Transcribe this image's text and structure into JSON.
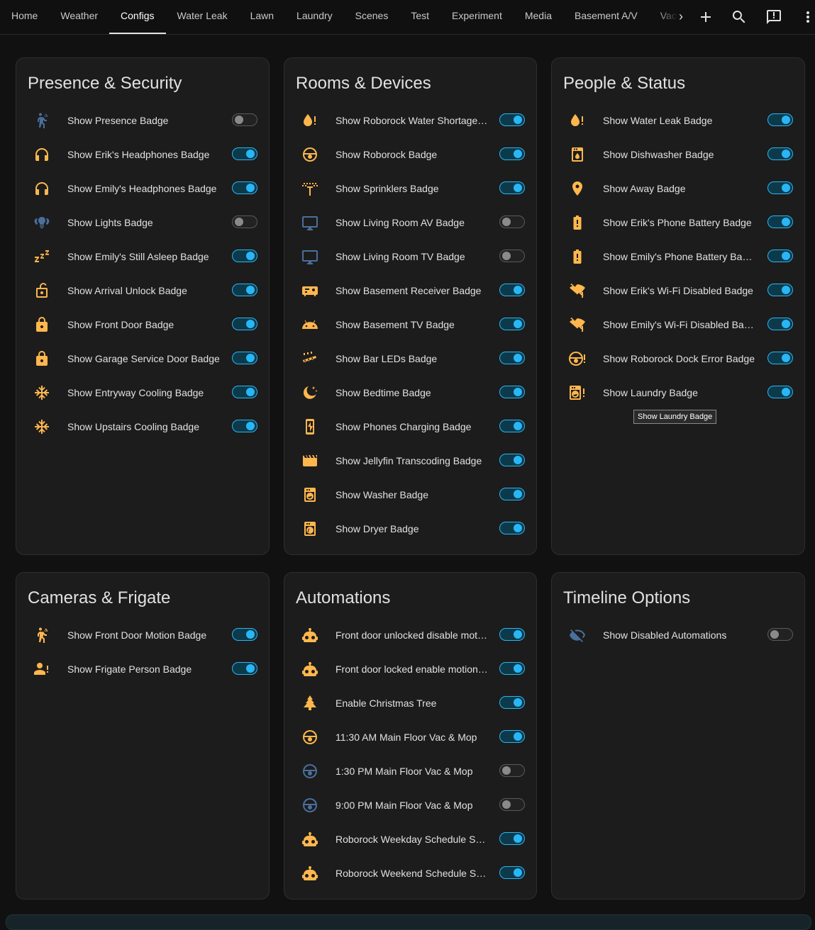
{
  "colors": {
    "accent": "#29b6f6",
    "icon_on": "#ffb74d",
    "icon_off": "#4a6f9c",
    "card": "#1c1c1c",
    "background": "#111111"
  },
  "nav": {
    "tabs": [
      "Home",
      "Weather",
      "Configs",
      "Water Leak",
      "Lawn",
      "Laundry",
      "Scenes",
      "Test",
      "Experiment",
      "Media",
      "Basement A/V",
      "Vacuum"
    ],
    "active_tab": "Configs",
    "actions": [
      "plus-icon",
      "search-icon",
      "chat-icon",
      "more-vert-icon"
    ]
  },
  "cards": [
    {
      "title": "Presence & Security",
      "rows": [
        {
          "icon": "motion-person",
          "label": "Show Presence Badge",
          "on": false
        },
        {
          "icon": "headphones",
          "label": "Show Erik's Headphones Badge",
          "on": true
        },
        {
          "icon": "headphones",
          "label": "Show Emily's Headphones Badge",
          "on": true
        },
        {
          "icon": "lightbulb-group",
          "label": "Show Lights Badge",
          "on": false
        },
        {
          "icon": "sleep",
          "label": "Show Emily's Still Asleep Badge",
          "on": true
        },
        {
          "icon": "lock-open",
          "label": "Show Arrival Unlock Badge",
          "on": true
        },
        {
          "icon": "lock",
          "label": "Show Front Door Badge",
          "on": true
        },
        {
          "icon": "lock",
          "label": "Show Garage Service Door Badge",
          "on": true
        },
        {
          "icon": "snowflake",
          "label": "Show Entryway Cooling Badge",
          "on": true
        },
        {
          "icon": "snowflake",
          "label": "Show Upstairs Cooling Badge",
          "on": true
        }
      ]
    },
    {
      "title": "Rooms & Devices",
      "rows": [
        {
          "icon": "water-alert",
          "label": "Show Roborock Water Shortage Badge",
          "on": true
        },
        {
          "icon": "robot-vacuum",
          "label": "Show Roborock Badge",
          "on": true
        },
        {
          "icon": "sprinkler",
          "label": "Show Sprinklers Badge",
          "on": true
        },
        {
          "icon": "monitor",
          "label": "Show Living Room AV Badge",
          "on": false
        },
        {
          "icon": "monitor",
          "label": "Show Living Room TV Badge",
          "on": false
        },
        {
          "icon": "audio-receiver",
          "label": "Show Basement Receiver Badge",
          "on": true
        },
        {
          "icon": "android",
          "label": "Show Basement TV Badge",
          "on": true
        },
        {
          "icon": "led-strip",
          "label": "Show Bar LEDs Badge",
          "on": true
        },
        {
          "icon": "moon-stars",
          "label": "Show Bedtime Badge",
          "on": true
        },
        {
          "icon": "phone-charging",
          "label": "Show Phones Charging Badge",
          "on": true
        },
        {
          "icon": "clapperboard",
          "label": "Show Jellyfin Transcoding Badge",
          "on": true
        },
        {
          "icon": "washer",
          "label": "Show Washer Badge",
          "on": true
        },
        {
          "icon": "dryer",
          "label": "Show Dryer Badge",
          "on": true
        }
      ]
    },
    {
      "title": "People & Status",
      "rows": [
        {
          "icon": "water-alert",
          "label": "Show Water Leak Badge",
          "on": true
        },
        {
          "icon": "dishwasher",
          "label": "Show Dishwasher Badge",
          "on": true
        },
        {
          "icon": "map-marker",
          "label": "Show Away Badge",
          "on": true
        },
        {
          "icon": "battery-alert",
          "label": "Show Erik's Phone Battery Badge",
          "on": true
        },
        {
          "icon": "battery-alert",
          "label": "Show Emily's Phone Battery Badge",
          "on": true
        },
        {
          "icon": "wifi-off",
          "label": "Show Erik's Wi-Fi Disabled Badge",
          "on": true
        },
        {
          "icon": "wifi-off",
          "label": "Show Emily's Wi-Fi Disabled Badge",
          "on": true
        },
        {
          "icon": "robot-vacuum-alert",
          "label": "Show Roborock Dock Error Badge",
          "on": true
        },
        {
          "icon": "laundry-alert",
          "label": "Show Laundry Badge",
          "on": true
        }
      ]
    },
    {
      "title": "Cameras & Frigate",
      "rows": [
        {
          "icon": "motion-person",
          "label": "Show Front Door Motion Badge",
          "on": true
        },
        {
          "icon": "person-alert",
          "label": "Show Frigate Person Badge",
          "on": true
        }
      ]
    },
    {
      "title": "Automations",
      "rows": [
        {
          "icon": "robot",
          "label": "Front door unlocked disable motion camera",
          "on": true
        },
        {
          "icon": "robot",
          "label": "Front door locked enable motion camera",
          "on": true
        },
        {
          "icon": "pine-tree",
          "label": "Enable Christmas Tree",
          "on": true
        },
        {
          "icon": "robot-vacuum",
          "label": "11:30 AM Main Floor Vac & Mop",
          "on": true
        },
        {
          "icon": "robot-vacuum",
          "label": "1:30 PM Main Floor Vac & Mop",
          "on": false
        },
        {
          "icon": "robot-vacuum",
          "label": "9:00 PM Main Floor Vac & Mop",
          "on": false
        },
        {
          "icon": "robot",
          "label": "Roborock Weekday Schedule Select",
          "on": true
        },
        {
          "icon": "robot",
          "label": "Roborock Weekend Schedule Select",
          "on": true
        }
      ]
    },
    {
      "title": "Timeline Options",
      "rows": [
        {
          "icon": "eye-off",
          "label": "Show Disabled Automations",
          "on": false
        }
      ]
    }
  ],
  "tooltip": "Show Laundry Badge"
}
